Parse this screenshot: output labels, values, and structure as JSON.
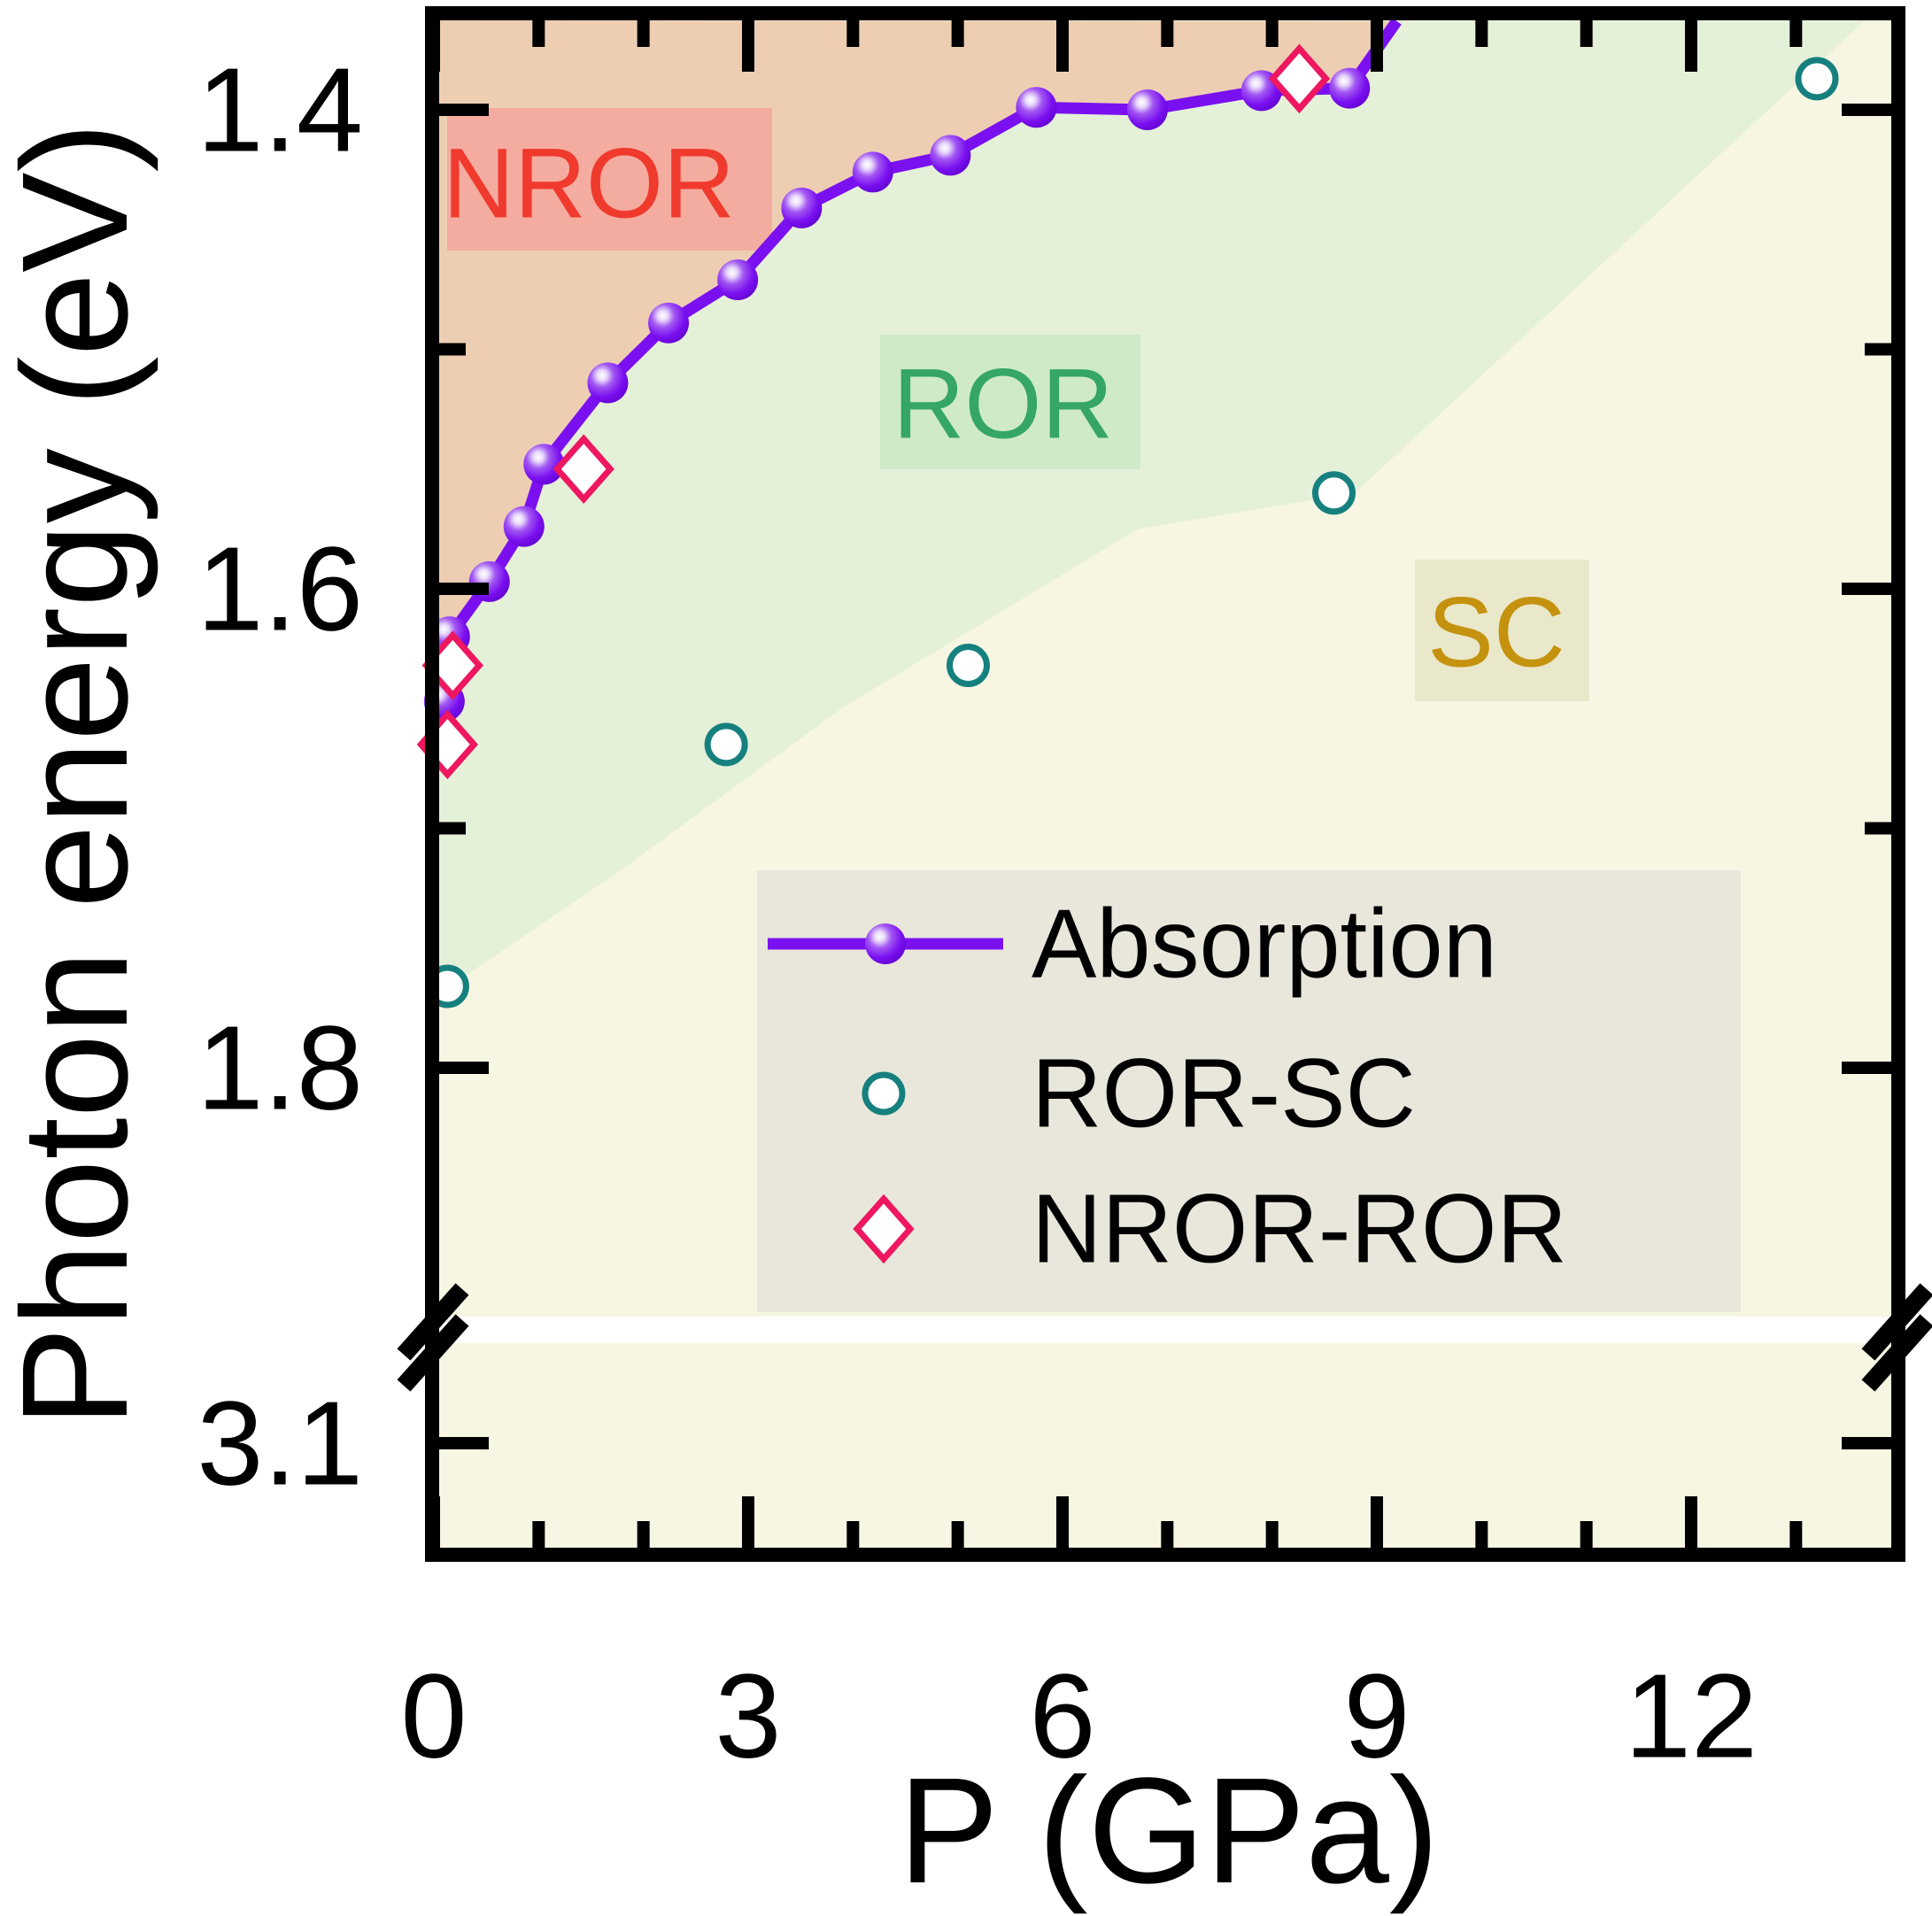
{
  "chart_data": {
    "type": "scatter",
    "title": "",
    "xlabel": "P (GPa)",
    "ylabel": "Photon energy (eV)",
    "x_axis": {
      "min": 0,
      "max": 14,
      "major_ticks": [
        0,
        3,
        6,
        9,
        12
      ],
      "major_tick_labels": [
        "0",
        "3",
        "6",
        "9",
        "12"
      ],
      "minor_ticks": [
        1,
        2,
        4,
        5,
        7,
        8,
        10,
        11,
        13
      ]
    },
    "y_axis": {
      "direction": "values increase downward",
      "upper_major_ticks": [
        1.4,
        1.6,
        1.8
      ],
      "upper_major_tick_labels": [
        "1.4",
        "1.6",
        "1.8"
      ],
      "upper_minor_ticks": [
        1.5,
        1.7
      ],
      "axis_break": true,
      "lower_major_ticks": [
        3.1
      ],
      "lower_major_tick_labels": [
        "3.1"
      ]
    },
    "series": [
      {
        "name": "Absorption",
        "type": "line+scatter",
        "marker": "sphere",
        "line_color": "#7a10f0",
        "points": [
          [
            0.1,
            1.647
          ],
          [
            0.15,
            1.62
          ],
          [
            0.53,
            1.597
          ],
          [
            0.86,
            1.574
          ],
          [
            1.05,
            1.548
          ],
          [
            1.66,
            1.514
          ],
          [
            2.24,
            1.489
          ],
          [
            2.9,
            1.471
          ],
          [
            3.51,
            1.441
          ],
          [
            4.19,
            1.426
          ],
          [
            4.93,
            1.419
          ],
          [
            5.75,
            1.399
          ],
          [
            6.81,
            1.4
          ],
          [
            7.9,
            1.392
          ],
          [
            8.74,
            1.391
          ]
        ],
        "line_exit_point": [
          9.19,
          1.363
        ]
      },
      {
        "name": "ROR-SC",
        "type": "scatter",
        "marker": "open-circle",
        "color": "#16807e",
        "points": [
          [
            0.13,
            1.766
          ],
          [
            2.79,
            1.665
          ],
          [
            5.1,
            1.632
          ],
          [
            8.59,
            1.56
          ],
          [
            13.2,
            1.387
          ]
        ]
      },
      {
        "name": "NROR-ROR",
        "type": "scatter",
        "marker": "open-diamond",
        "color": "#ee1760",
        "points": [
          [
            0.13,
            1.665
          ],
          [
            0.18,
            1.632
          ],
          [
            1.43,
            1.55
          ],
          [
            8.26,
            1.387
          ]
        ]
      }
    ],
    "phase_regions": [
      {
        "label": "NROR",
        "fill": "#edceb3",
        "label_box_color": "#f5aca0",
        "label_color": "#f03a2e"
      },
      {
        "label": "ROR",
        "fill": "#e5f0d9",
        "label_box_color": "#cfeac8",
        "label_color": "#35a666"
      },
      {
        "label": "SC",
        "fill": "#f7f6e3",
        "label_box_color": "#eae8ca",
        "label_color": "#c4920e"
      }
    ],
    "ror_sc_boundary": [
      [
        0.05,
        1.769
      ],
      [
        1.77,
        1.718
      ],
      [
        3.89,
        1.65
      ],
      [
        6.72,
        1.575
      ],
      [
        8.79,
        1.56
      ],
      [
        13.65,
        1.363
      ]
    ],
    "legend": {
      "box_color": "#e9e7db",
      "items": [
        {
          "label": "Absorption"
        },
        {
          "label": "ROR-SC"
        },
        {
          "label": "NROR-ROR"
        }
      ]
    },
    "axis_color": "#000000",
    "break_band_color": "#ffffff"
  }
}
